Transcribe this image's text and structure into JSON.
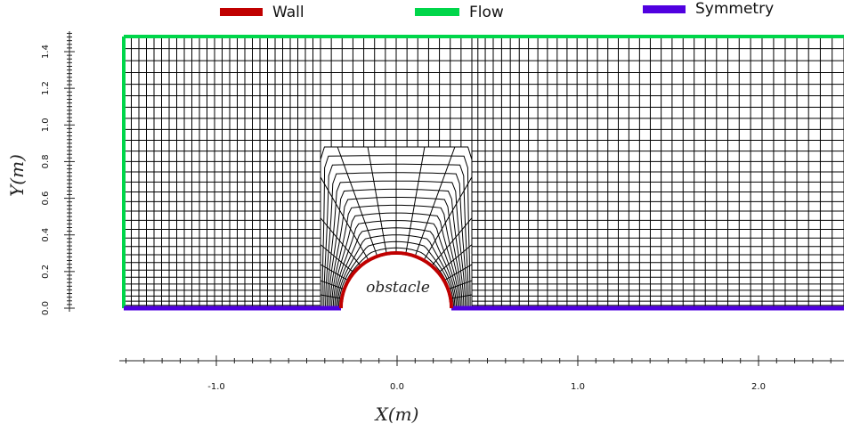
{
  "legend": [
    {
      "label": "Wall",
      "color": "#c00000"
    },
    {
      "label": "Flow",
      "color": "#00d64a"
    },
    {
      "label": "Symmetry",
      "color": "#5000e0"
    }
  ],
  "x_axis": {
    "title": "X(m)",
    "tick_labels": [
      "-1.0",
      "0.0",
      "1.0",
      "2.0"
    ]
  },
  "y_axis": {
    "title": "Y(m)",
    "tick_labels": [
      "0.0",
      "0.2",
      "0.4",
      "0.6",
      "0.8",
      "1.0",
      "1.2",
      "1.4"
    ]
  },
  "obstacle_label": "obstacle",
  "colors": {
    "mesh": "#000000",
    "wall": "#c00000",
    "flow": "#00d64a",
    "symmetry": "#5000e0"
  }
}
